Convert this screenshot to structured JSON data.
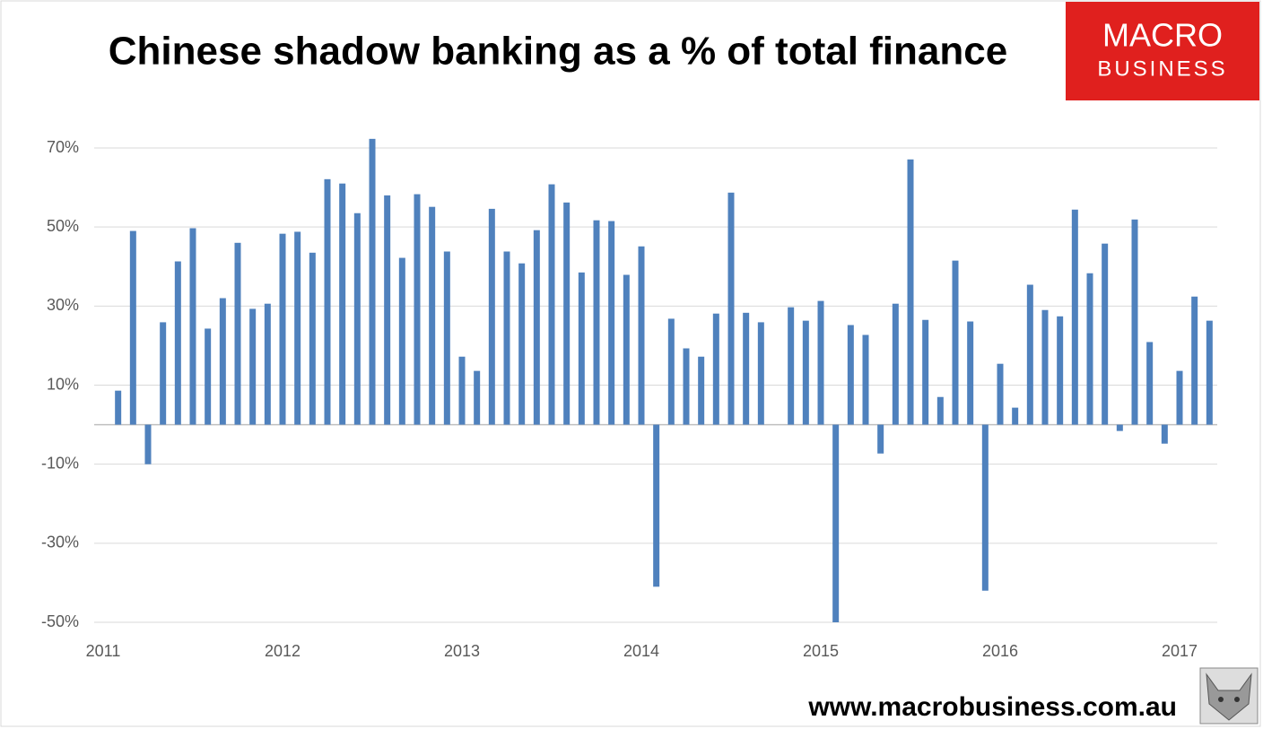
{
  "chart_data": {
    "type": "bar",
    "title": "Chinese shadow banking as a % of total finance",
    "logo": {
      "line1": "MACRO",
      "line2": "BUSINESS"
    },
    "source": "www.macrobusiness.com.au",
    "categories": [
      "2011",
      null,
      null,
      null,
      null,
      null,
      null,
      null,
      null,
      null,
      null,
      null,
      "2012",
      null,
      null,
      null,
      null,
      null,
      null,
      null,
      null,
      null,
      null,
      null,
      "2013",
      null,
      null,
      null,
      null,
      null,
      null,
      null,
      null,
      null,
      null,
      null,
      "2014",
      null,
      null,
      null,
      null,
      null,
      null,
      null,
      null,
      null,
      null,
      null,
      "2015",
      null,
      null,
      null,
      null,
      null,
      null,
      null,
      null,
      null,
      null,
      null,
      "2016",
      null,
      null,
      null,
      null,
      null,
      null,
      null,
      null,
      null,
      null,
      null,
      "2017",
      null,
      null
    ],
    "values": [
      null,
      8.6,
      49,
      -10,
      25.9,
      41.3,
      49.7,
      24.3,
      32,
      46,
      29.3,
      30.6,
      48.3,
      48.8,
      43.5,
      62.1,
      61,
      53.5,
      72.3,
      58,
      42.2,
      58.3,
      55.1,
      43.8,
      17.2,
      13.6,
      54.6,
      43.8,
      40.8,
      49.2,
      60.8,
      56.2,
      38.5,
      51.7,
      51.5,
      37.9,
      45.1,
      -41,
      26.8,
      19.3,
      17.2,
      28.1,
      58.7,
      28.3,
      25.9,
      null,
      29.7,
      26.3,
      31.3,
      -50,
      25.2,
      22.7,
      -7.3,
      30.6,
      67.1,
      26.5,
      7,
      41.5,
      26.1,
      -42,
      15.4,
      4.3,
      35.4,
      29,
      27.4,
      54.4,
      38.3,
      45.8,
      -1.6,
      51.9,
      20.9,
      -4.8,
      13.6,
      32.4,
      26.3
    ],
    "color": "#4f81bd",
    "ylim": [
      -50,
      70
    ],
    "yticks": [
      {
        "value": -50,
        "label": "-50%"
      },
      {
        "value": -30,
        "label": "-30%"
      },
      {
        "value": -10,
        "label": "-10%"
      },
      {
        "value": 10,
        "label": "10%"
      },
      {
        "value": 30,
        "label": "30%"
      },
      {
        "value": 50,
        "label": "50%"
      },
      {
        "value": 70,
        "label": "70%"
      }
    ],
    "grid": true
  }
}
